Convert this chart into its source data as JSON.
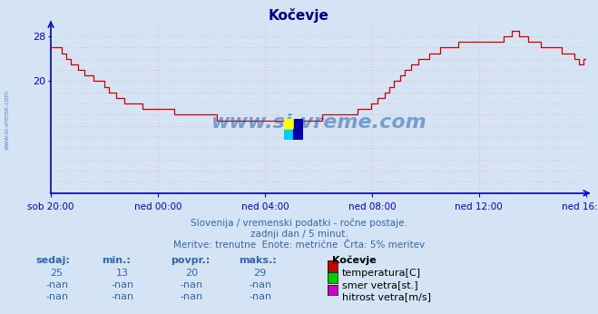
{
  "title": "Kočevje",
  "bg_color": "#d4e4f4",
  "plot_bg_color": "#d4e4f4",
  "line_color": "#cc0000",
  "axis_color": "#0000cc",
  "grid_color": "#ffaaaa",
  "text_color": "#3366aa",
  "xlabel_ticks": [
    "sob 20:00",
    "ned 00:00",
    "ned 04:00",
    "ned 08:00",
    "ned 12:00",
    "ned 16:00"
  ],
  "ylim": [
    0,
    30
  ],
  "ytick_vals": [
    20,
    28
  ],
  "ytick_labels": [
    "20",
    "28"
  ],
  "subtitle1": "Slovenija / vremenski podatki - ročne postaje.",
  "subtitle2": "zadnji dan / 5 minut.",
  "subtitle3": "Meritve: trenutne  Enote: metrične  Črta: 5% meritev",
  "legend_title": "Kočevje",
  "legend_items": [
    {
      "label": "temperatura[C]",
      "color": "#cc0000"
    },
    {
      "label": "smer vetra[st.]",
      "color": "#00cc00"
    },
    {
      "label": "hitrost vetra[m/s]",
      "color": "#cc00cc"
    }
  ],
  "stats_headers": [
    "sedaj:",
    "min.:",
    "povpr.:",
    "maks.:"
  ],
  "stats_rows": [
    [
      "25",
      "13",
      "20",
      "29"
    ],
    [
      "-nan",
      "-nan",
      "-nan",
      "-nan"
    ],
    [
      "-nan",
      "-nan",
      "-nan",
      "-nan"
    ]
  ],
  "watermark": "www.si-vreme.com",
  "watermark_color": "#1a5cb0",
  "temp_data": [
    26,
    26,
    26,
    26,
    26,
    25,
    25,
    24,
    24,
    23,
    23,
    23,
    22,
    22,
    22,
    21,
    21,
    21,
    21,
    20,
    20,
    20,
    20,
    20,
    19,
    19,
    18,
    18,
    18,
    17,
    17,
    17,
    17,
    16,
    16,
    16,
    16,
    16,
    16,
    16,
    16,
    15,
    15,
    15,
    15,
    15,
    15,
    15,
    15,
    15,
    15,
    15,
    15,
    15,
    15,
    14,
    14,
    14,
    14,
    14,
    14,
    14,
    14,
    14,
    14,
    14,
    14,
    14,
    14,
    14,
    14,
    14,
    14,
    14,
    13,
    13,
    13,
    13,
    13,
    13,
    13,
    13,
    13,
    13,
    13,
    13,
    13,
    13,
    13,
    13,
    13,
    13,
    13,
    13,
    13,
    13,
    13,
    13,
    13,
    13,
    13,
    13,
    13,
    13,
    13,
    13,
    13,
    13,
    13,
    13,
    13,
    13,
    13,
    13,
    13,
    13,
    13,
    13,
    13,
    13,
    13,
    14,
    14,
    14,
    14,
    14,
    14,
    14,
    14,
    14,
    14,
    14,
    14,
    14,
    14,
    14,
    14,
    15,
    15,
    15,
    15,
    15,
    15,
    16,
    16,
    16,
    17,
    17,
    17,
    18,
    18,
    19,
    19,
    20,
    20,
    20,
    21,
    21,
    22,
    22,
    22,
    23,
    23,
    23,
    24,
    24,
    24,
    24,
    24,
    25,
    25,
    25,
    25,
    25,
    26,
    26,
    26,
    26,
    26,
    26,
    26,
    26,
    27,
    27,
    27,
    27,
    27,
    27,
    27,
    27,
    27,
    27,
    27,
    27,
    27,
    27,
    27,
    27,
    27,
    27,
    27,
    27,
    28,
    28,
    28,
    28,
    29,
    29,
    29,
    28,
    28,
    28,
    28,
    27,
    27,
    27,
    27,
    27,
    27,
    26,
    26,
    26,
    26,
    26,
    26,
    26,
    26,
    26,
    25,
    25,
    25,
    25,
    25,
    25,
    24,
    24,
    23,
    23,
    24,
    24
  ],
  "hgrid_vals": [
    2,
    4,
    6,
    8,
    10,
    12,
    14,
    16,
    18,
    20,
    22,
    24,
    26,
    28
  ]
}
